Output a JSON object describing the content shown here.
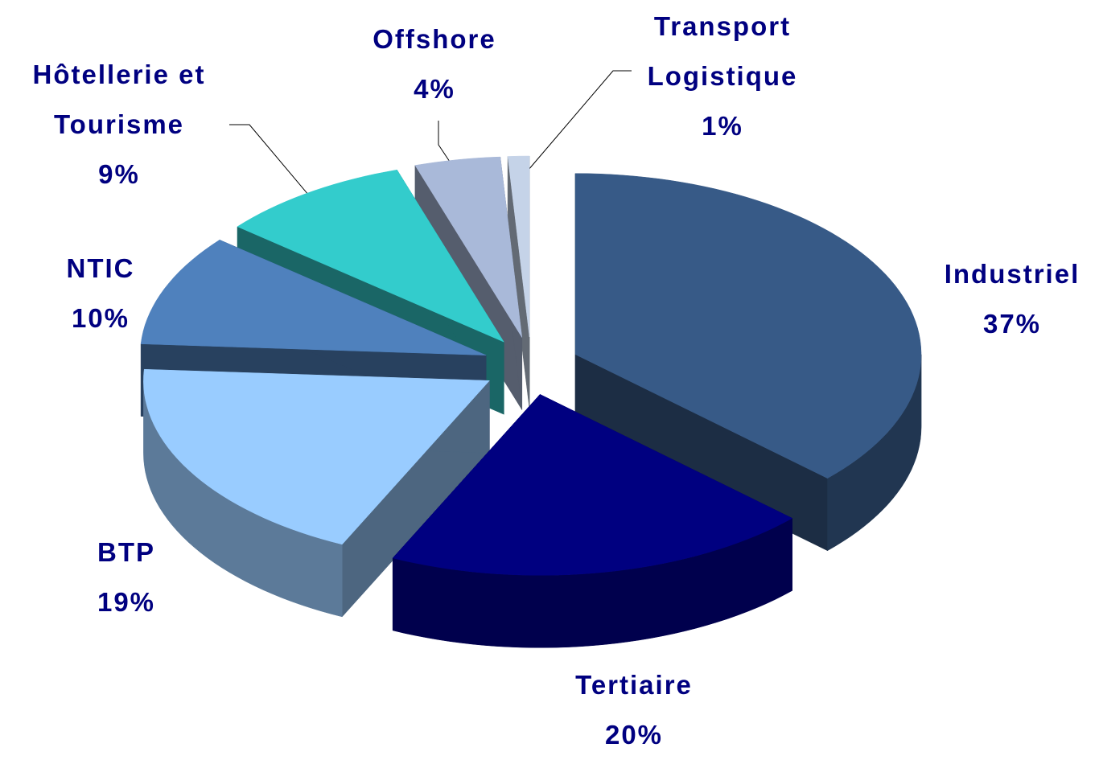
{
  "chart_data": {
    "type": "pie",
    "categories": [
      "Industriel",
      "Tertiaire",
      "BTP",
      "NTIC",
      "Hôtellerie et Tourisme",
      "Offshore",
      "Transport Logistique"
    ],
    "values": [
      37,
      20,
      19,
      10,
      9,
      4,
      1
    ],
    "value_labels": [
      "37%",
      "20%",
      "19%",
      "10%",
      "9%",
      "4%",
      "1%"
    ],
    "colors": [
      "#375a87",
      "#000080",
      "#99ccff",
      "#4f81bd",
      "#33cccc",
      "#a9b9d9",
      "#c5d3e8"
    ]
  }
}
